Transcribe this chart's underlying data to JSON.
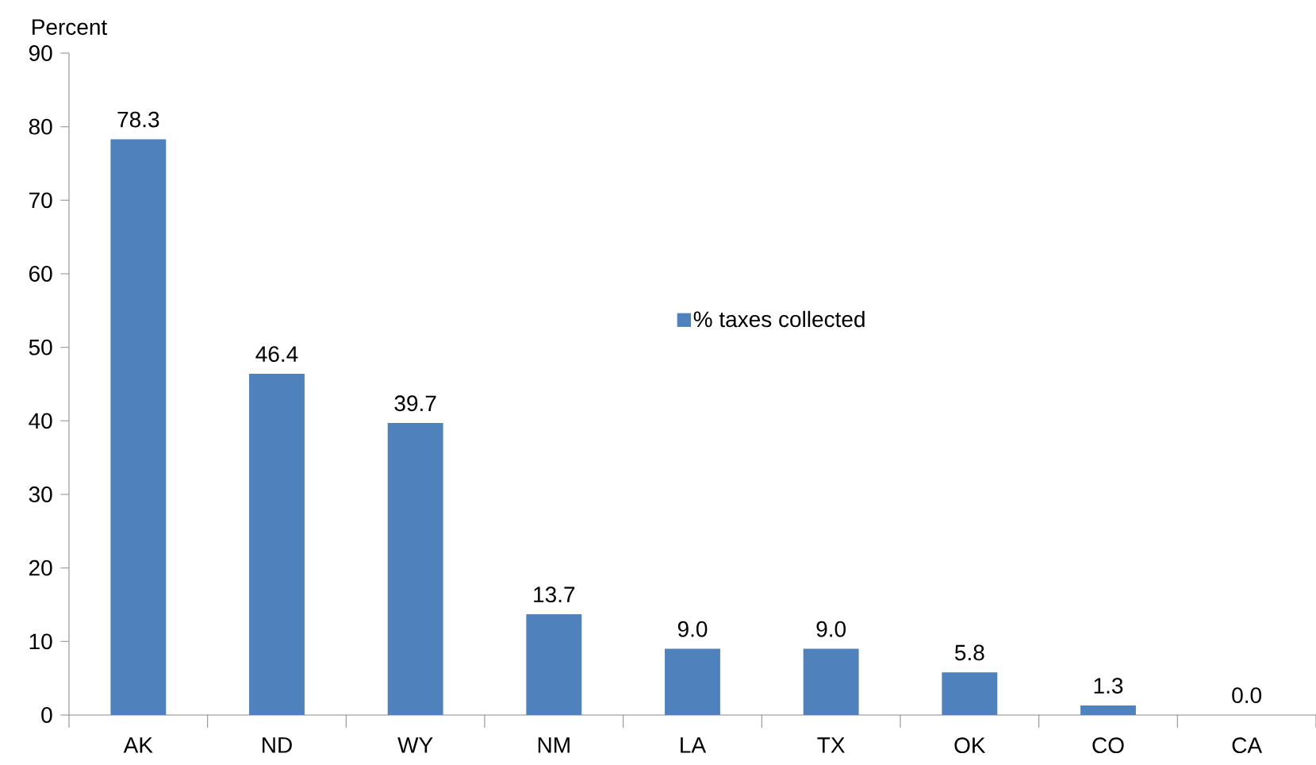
{
  "chart_data": {
    "type": "bar",
    "ylabel": "Percent",
    "categories": [
      "AK",
      "ND",
      "WY",
      "NM",
      "LA",
      "TX",
      "OK",
      "CO",
      "CA"
    ],
    "series": [
      {
        "name": "% taxes collected",
        "color": "#4f81bd",
        "values": [
          78.3,
          46.4,
          39.7,
          13.7,
          9.0,
          9.0,
          5.8,
          1.3,
          0.0
        ],
        "value_labels": [
          "78.3",
          "46.4",
          "39.7",
          "13.7",
          "9.0",
          "9.0",
          "5.8",
          "1.3",
          "0.0"
        ]
      }
    ],
    "ylim": [
      0,
      90
    ],
    "yticks": [
      0,
      10,
      20,
      30,
      40,
      50,
      60,
      70,
      80,
      90
    ],
    "grid": false,
    "legend": "center"
  }
}
